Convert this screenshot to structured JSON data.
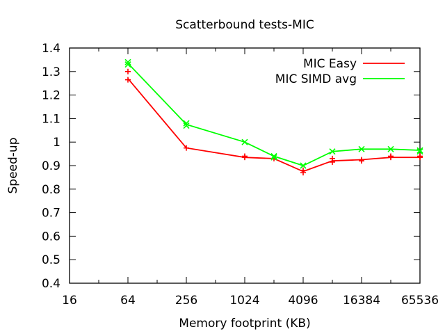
{
  "chart_data": {
    "type": "line",
    "title": "Scatterbound tests-MIC",
    "xlabel": "Memory footprint (KB)",
    "ylabel": "Speed-up",
    "x_scale": "log2",
    "xlim": [
      16,
      65536
    ],
    "ylim": [
      0.4,
      1.4
    ],
    "x_ticks": [
      16,
      64,
      256,
      1024,
      4096,
      16384,
      65536
    ],
    "x_tick_labels": [
      "16",
      "64",
      "256",
      "1024",
      "4096",
      "16384",
      "65536"
    ],
    "y_ticks": [
      0.4,
      0.5,
      0.6,
      0.7,
      0.8,
      0.9,
      1.0,
      1.1,
      1.2,
      1.3,
      1.4
    ],
    "y_tick_labels": [
      "0.4",
      "0.5",
      "0.6",
      "0.7",
      "0.8",
      "0.9",
      "1",
      "1.1",
      "1.2",
      "1.3",
      "1.4"
    ],
    "grid": false,
    "legend_position": "top-right",
    "series": [
      {
        "name": "MIC Easy",
        "color": "#ff0000",
        "marker": "plus",
        "x": [
          64,
          256,
          1024,
          2048,
          4096,
          8192,
          16384,
          32768,
          65536
        ],
        "values": [
          1.27,
          0.975,
          0.935,
          0.93,
          0.875,
          0.92,
          0.925,
          0.935,
          0.935
        ],
        "points": [
          [
            64,
            1.3
          ],
          [
            64,
            1.265
          ],
          [
            256,
            0.975
          ],
          [
            1024,
            0.935
          ],
          [
            1024,
            0.94
          ],
          [
            2048,
            0.93
          ],
          [
            4096,
            0.87
          ],
          [
            4096,
            0.88
          ],
          [
            8192,
            0.915
          ],
          [
            8192,
            0.93
          ],
          [
            16384,
            0.92
          ],
          [
            16384,
            0.925
          ],
          [
            32768,
            0.935
          ],
          [
            32768,
            0.94
          ],
          [
            65536,
            0.935
          ],
          [
            65536,
            0.94
          ]
        ]
      },
      {
        "name": "MIC SIMD avg",
        "color": "#00ff00",
        "marker": "cross",
        "x": [
          64,
          256,
          1024,
          2048,
          4096,
          8192,
          16384,
          32768,
          65536
        ],
        "values": [
          1.335,
          1.075,
          1.0,
          0.94,
          0.9,
          0.96,
          0.97,
          0.97,
          0.965
        ],
        "points": [
          [
            64,
            1.34
          ],
          [
            64,
            1.33
          ],
          [
            256,
            1.08
          ],
          [
            256,
            1.07
          ],
          [
            1024,
            1.0
          ],
          [
            2048,
            0.94
          ],
          [
            2048,
            0.935
          ],
          [
            4096,
            0.9
          ],
          [
            8192,
            0.96
          ],
          [
            16384,
            0.97
          ],
          [
            32768,
            0.97
          ],
          [
            65536,
            0.965
          ],
          [
            65536,
            0.96
          ]
        ]
      }
    ]
  }
}
